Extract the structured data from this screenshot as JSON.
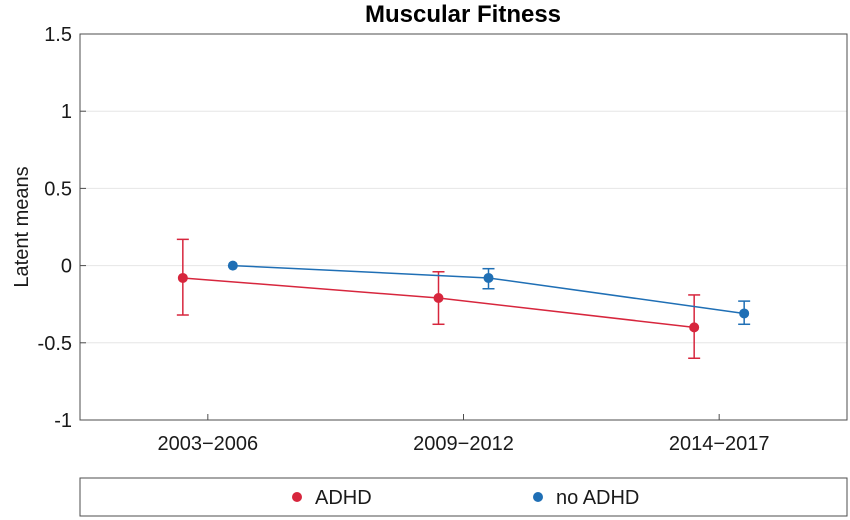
{
  "chart_data": {
    "type": "line",
    "title": "Muscular Fitness",
    "xlabel": "",
    "ylabel": "Latent means",
    "categories": [
      "2003−2006",
      "2009−2012",
      "2014−2017"
    ],
    "ylim": [
      -1,
      1.5
    ],
    "yticks": [
      "1.5",
      "1",
      "0.5",
      "0",
      "-0.5",
      "-1"
    ],
    "ytick_values": [
      1.5,
      1,
      0.5,
      0,
      -0.5,
      -1
    ],
    "grid": true,
    "legend_position": "bottom",
    "series": [
      {
        "name": "ADHD",
        "color": "#d7263d",
        "values": [
          -0.08,
          -0.21,
          -0.4
        ],
        "error_low": [
          -0.32,
          -0.38,
          -0.6
        ],
        "error_high": [
          0.17,
          -0.04,
          -0.19
        ]
      },
      {
        "name": "no ADHD",
        "color": "#1f6fb5",
        "values": [
          0.0,
          -0.08,
          -0.31
        ],
        "error_low": [
          0.0,
          -0.15,
          -0.38
        ],
        "error_high": [
          0.0,
          -0.02,
          -0.23
        ]
      }
    ]
  }
}
